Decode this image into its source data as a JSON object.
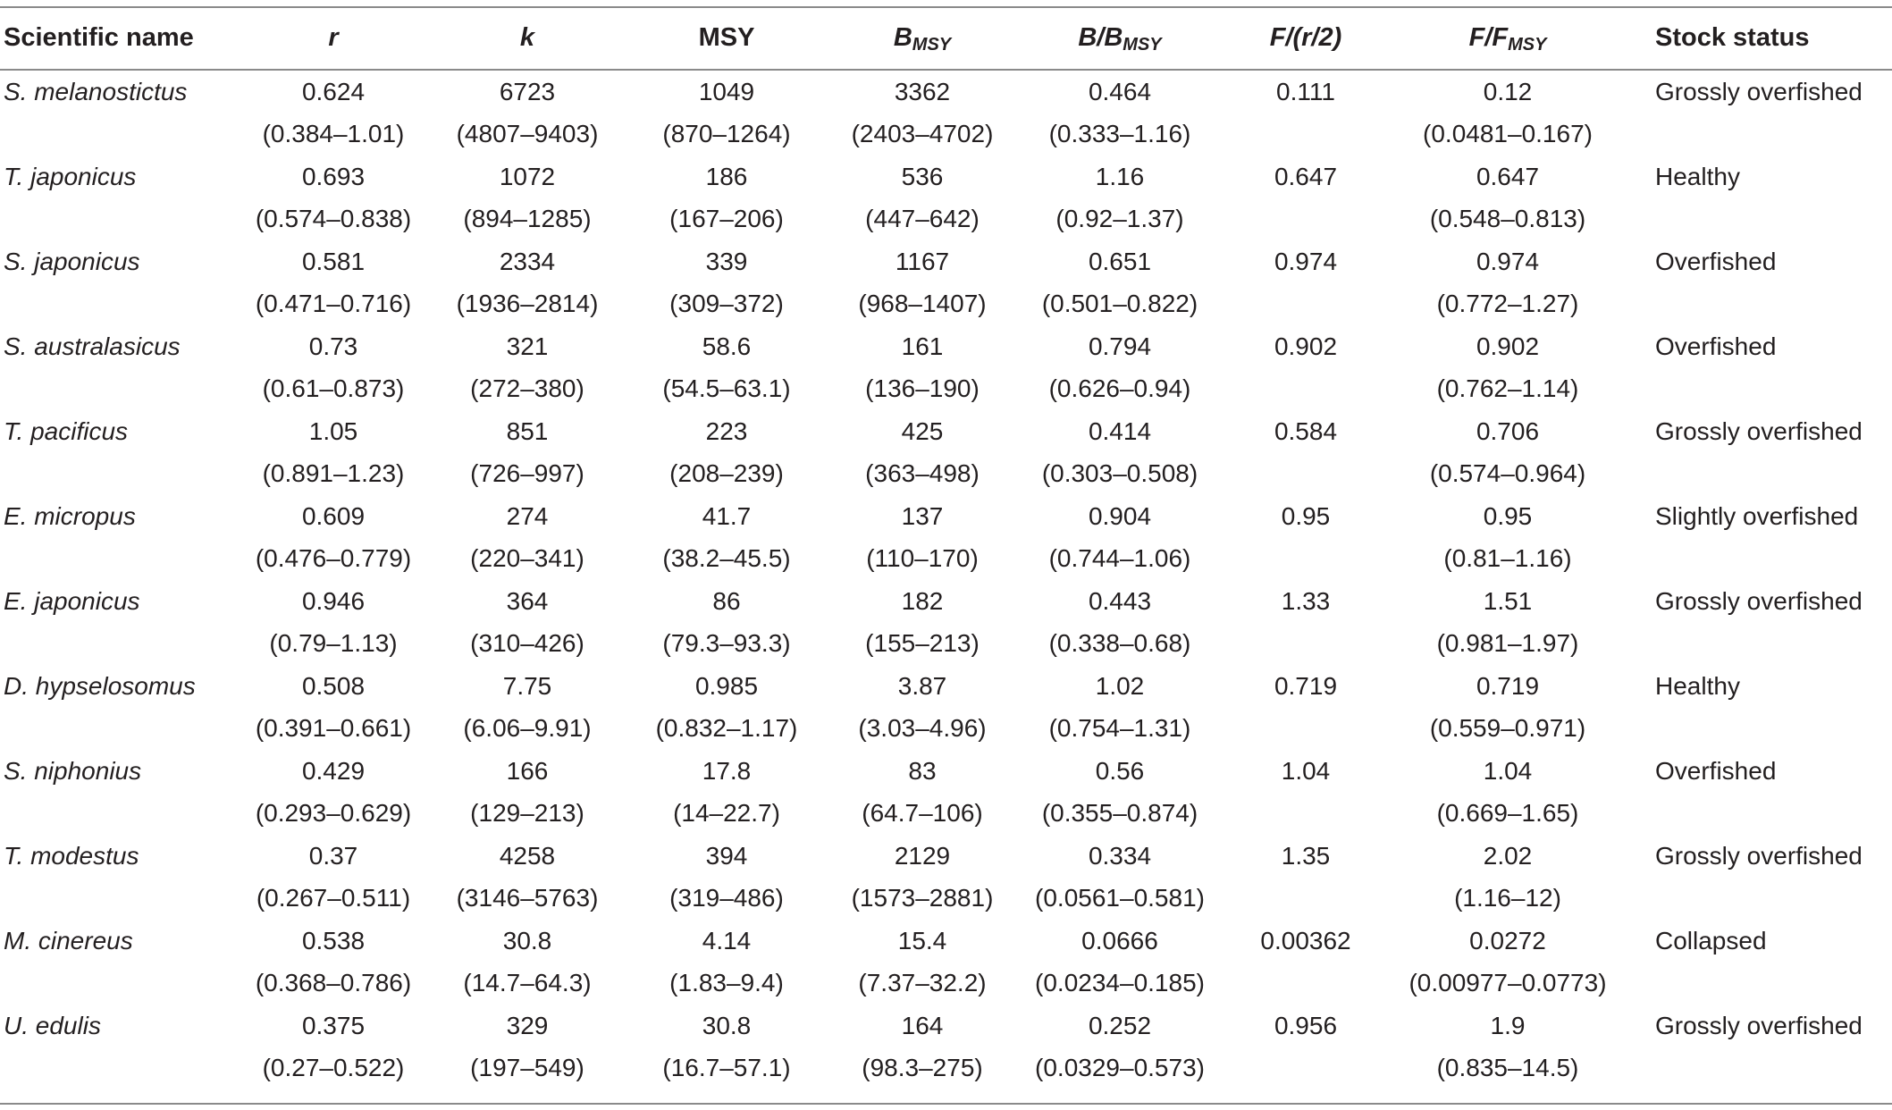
{
  "table": {
    "headers": {
      "scientific_name": "Scientific name",
      "r": "r",
      "k": "k",
      "msy": "MSY",
      "bmsy_main": "B",
      "bmsy_sub": "MSY",
      "b_over_bmsy_main": "B/B",
      "b_over_bmsy_sub": "MSY",
      "f_over_r2": "F/(r/2)",
      "f_over_fmsy_main": "F/F",
      "f_over_fmsy_sub": "MSY",
      "stock_status": "Stock status"
    },
    "rows": [
      {
        "name": "S. melanostictus",
        "r": "0.624",
        "r_ci": "(0.384–1.01)",
        "k": "6723",
        "k_ci": "(4807–9403)",
        "msy": "1049",
        "msy_ci": "(870–1264)",
        "bmsy": "3362",
        "bmsy_ci": "(2403–4702)",
        "bb": "0.464",
        "bb_ci": "(0.333–1.16)",
        "fr": "0.111",
        "ff": "0.12",
        "ff_ci": "(0.0481–0.167)",
        "status": "Grossly overfished"
      },
      {
        "name": "T. japonicus",
        "r": "0.693",
        "r_ci": "(0.574–0.838)",
        "k": "1072",
        "k_ci": "(894–1285)",
        "msy": "186",
        "msy_ci": "(167–206)",
        "bmsy": "536",
        "bmsy_ci": "(447–642)",
        "bb": "1.16",
        "bb_ci": "(0.92–1.37)",
        "fr": "0.647",
        "ff": "0.647",
        "ff_ci": "(0.548–0.813)",
        "status": "Healthy"
      },
      {
        "name": "S. japonicus",
        "r": "0.581",
        "r_ci": "(0.471–0.716)",
        "k": "2334",
        "k_ci": "(1936–2814)",
        "msy": "339",
        "msy_ci": "(309–372)",
        "bmsy": "1167",
        "bmsy_ci": "(968–1407)",
        "bb": "0.651",
        "bb_ci": "(0.501–0.822)",
        "fr": "0.974",
        "ff": "0.974",
        "ff_ci": "(0.772–1.27)",
        "status": "Overfished"
      },
      {
        "name": "S. australasicus",
        "r": "0.73",
        "r_ci": "(0.61–0.873)",
        "k": "321",
        "k_ci": "(272–380)",
        "msy": "58.6",
        "msy_ci": "(54.5–63.1)",
        "bmsy": "161",
        "bmsy_ci": "(136–190)",
        "bb": "0.794",
        "bb_ci": "(0.626–0.94)",
        "fr": "0.902",
        "ff": "0.902",
        "ff_ci": "(0.762–1.14)",
        "status": "Overfished"
      },
      {
        "name": "T. pacificus",
        "r": "1.05",
        "r_ci": "(0.891–1.23)",
        "k": "851",
        "k_ci": "(726–997)",
        "msy": "223",
        "msy_ci": "(208–239)",
        "bmsy": "425",
        "bmsy_ci": "(363–498)",
        "bb": "0.414",
        "bb_ci": "(0.303–0.508)",
        "fr": "0.584",
        "ff": "0.706",
        "ff_ci": "(0.574–0.964)",
        "status": "Grossly overfished"
      },
      {
        "name": "E. micropus",
        "r": "0.609",
        "r_ci": "(0.476–0.779)",
        "k": "274",
        "k_ci": "(220–341)",
        "msy": "41.7",
        "msy_ci": "(38.2–45.5)",
        "bmsy": "137",
        "bmsy_ci": "(110–170)",
        "bb": "0.904",
        "bb_ci": "(0.744–1.06)",
        "fr": "0.95",
        "ff": "0.95",
        "ff_ci": "(0.81–1.16)",
        "status": "Slightly overfished"
      },
      {
        "name": "E. japonicus",
        "r": "0.946",
        "r_ci": "(0.79–1.13)",
        "k": "364",
        "k_ci": "(310–426)",
        "msy": "86",
        "msy_ci": "(79.3–93.3)",
        "bmsy": "182",
        "bmsy_ci": "(155–213)",
        "bb": "0.443",
        "bb_ci": "(0.338–0.68)",
        "fr": "1.33",
        "ff": "1.51",
        "ff_ci": "(0.981–1.97)",
        "status": "Grossly overfished"
      },
      {
        "name": "D. hypselosomus",
        "r": "0.508",
        "r_ci": "(0.391–0.661)",
        "k": "7.75",
        "k_ci": "(6.06–9.91)",
        "msy": "0.985",
        "msy_ci": "(0.832–1.17)",
        "bmsy": "3.87",
        "bmsy_ci": "(3.03–4.96)",
        "bb": "1.02",
        "bb_ci": "(0.754–1.31)",
        "fr": "0.719",
        "ff": "0.719",
        "ff_ci": "(0.559–0.971)",
        "status": "Healthy"
      },
      {
        "name": "S. niphonius",
        "r": "0.429",
        "r_ci": "(0.293–0.629)",
        "k": "166",
        "k_ci": "(129–213)",
        "msy": "17.8",
        "msy_ci": "(14–22.7)",
        "bmsy": "83",
        "bmsy_ci": "(64.7–106)",
        "bb": "0.56",
        "bb_ci": "(0.355–0.874)",
        "fr": "1.04",
        "ff": "1.04",
        "ff_ci": "(0.669–1.65)",
        "status": "Overfished"
      },
      {
        "name": "T. modestus",
        "r": "0.37",
        "r_ci": "(0.267–0.511)",
        "k": "4258",
        "k_ci": "(3146–5763)",
        "msy": "394",
        "msy_ci": "(319–486)",
        "bmsy": "2129",
        "bmsy_ci": "(1573–2881)",
        "bb": "0.334",
        "bb_ci": "(0.0561–0.581)",
        "fr": "1.35",
        "ff": "2.02",
        "ff_ci": "(1.16–12)",
        "status": "Grossly overfished"
      },
      {
        "name": "M. cinereus",
        "r": "0.538",
        "r_ci": "(0.368–0.786)",
        "k": "30.8",
        "k_ci": "(14.7–64.3)",
        "msy": "4.14",
        "msy_ci": "(1.83–9.4)",
        "bmsy": "15.4",
        "bmsy_ci": "(7.37–32.2)",
        "bb": "0.0666",
        "bb_ci": "(0.0234–0.185)",
        "fr": "0.00362",
        "ff": "0.0272",
        "ff_ci": "(0.00977–0.0773)",
        "status": "Collapsed"
      },
      {
        "name": "U. edulis",
        "r": "0.375",
        "r_ci": "(0.27–0.522)",
        "k": "329",
        "k_ci": "(197–549)",
        "msy": "30.8",
        "msy_ci": "(16.7–57.1)",
        "bmsy": "164",
        "bmsy_ci": "(98.3–275)",
        "bb": "0.252",
        "bb_ci": "(0.0329–0.573)",
        "fr": "0.956",
        "ff": "1.9",
        "ff_ci": "(0.835–14.5)",
        "status": "Grossly overfished"
      }
    ]
  }
}
